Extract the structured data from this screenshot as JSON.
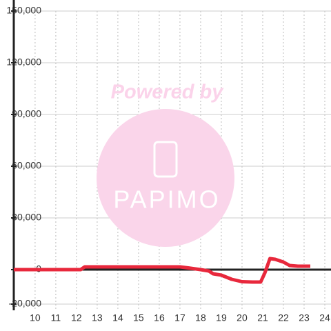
{
  "chart_data": {
    "type": "line",
    "x": [
      8.97,
      12.2,
      12.4,
      17,
      17.4,
      18,
      18.4,
      18.6,
      19,
      19.5,
      20,
      20.5,
      20.9,
      21.1,
      21.35,
      21.6,
      22,
      22.3,
      22.7,
      23.3
    ],
    "values": [
      0,
      0,
      1600,
      1600,
      1000,
      0,
      -800,
      -2400,
      -3200,
      -5600,
      -7000,
      -7200,
      -7200,
      -2000,
      6400,
      6000,
      4400,
      2400,
      2000,
      2000
    ],
    "color": "#e8283c",
    "xlim": [
      8.97,
      24.3
    ],
    "xticks": [
      10,
      11,
      12,
      13,
      14,
      15,
      16,
      17,
      18,
      19,
      20,
      21,
      22,
      23,
      24
    ],
    "ylim": [
      -23600,
      150000
    ],
    "yticks": [
      {
        "value": -20000,
        "label": "-20,000"
      },
      0,
      {
        "value": 30000,
        "label": "30,000"
      },
      {
        "value": 60000,
        "label": "60,000"
      },
      {
        "value": 90000,
        "label": "90,000"
      },
      {
        "value": 120000,
        "label": "120,000"
      },
      {
        "value": 150000,
        "label": "150,000"
      }
    ],
    "grid": true,
    "watermark": {
      "text": "Powered by",
      "logo": "PAPIMO"
    }
  }
}
